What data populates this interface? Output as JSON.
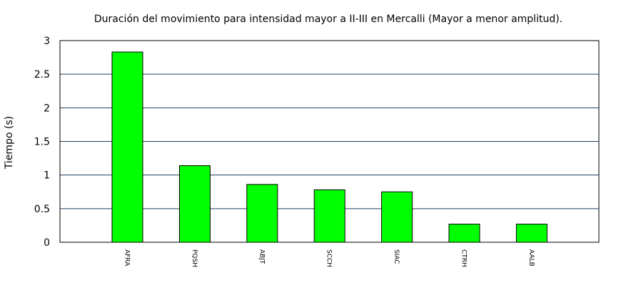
{
  "chart_data": {
    "type": "bar",
    "title": "Duración del movimiento para intensidad mayor a II-III en Mercalli (Mayor a menor amplitud).",
    "xlabel": "",
    "ylabel": "Tiempo (s)",
    "categories": [
      "AFRA",
      "PQSH",
      "ABJT",
      "SCCH",
      "SIAC",
      "CTRH",
      "AALB"
    ],
    "values": [
      2.83,
      1.14,
      0.86,
      0.78,
      0.75,
      0.27,
      0.27
    ],
    "ylim": [
      0,
      3
    ],
    "yticks": [
      "0",
      "0.5",
      "1",
      "1.5",
      "2",
      "2.5",
      "3"
    ],
    "grid": true,
    "legend": "none",
    "colors": {
      "bar_fill": "#00ff00",
      "bar_stroke": "#000000",
      "grid": "#1f3f5f",
      "axis": "#000000"
    }
  }
}
